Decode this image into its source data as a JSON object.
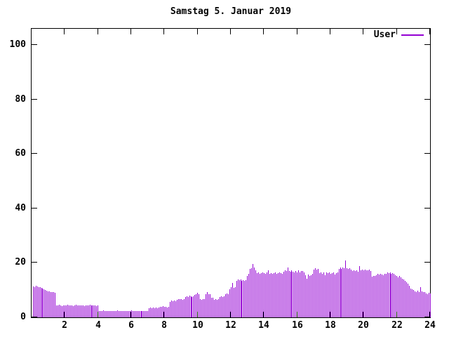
{
  "title": "Samstag 5. Januar 2019",
  "legend": {
    "label": "User"
  },
  "colors": {
    "series": "#9400D3",
    "axis": "#000000",
    "background": "#ffffff"
  },
  "axes": {
    "y_ticks": [
      0,
      20,
      40,
      60,
      80,
      100
    ],
    "x_ticks": [
      2,
      4,
      6,
      8,
      10,
      12,
      14,
      16,
      18,
      20,
      22,
      24
    ]
  },
  "chart_data": {
    "type": "bar",
    "title": "Samstag 5. Januar 2019",
    "series_name": "User",
    "xlabel": "",
    "ylabel": "",
    "xlim": [
      0,
      24
    ],
    "ylim": [
      0,
      106
    ],
    "grid": false,
    "legend_position": "top-right",
    "x_unit": "hour of day",
    "interval_minutes": 5,
    "values": [
      11.4,
      11.2,
      11.5,
      11.3,
      11.0,
      11.2,
      10.9,
      10.6,
      10.2,
      10.0,
      9.8,
      9.6,
      9.5,
      9.3,
      9.4,
      9.2,
      9.0,
      4.5,
      4.3,
      4.6,
      4.4,
      4.2,
      4.5,
      4.4,
      4.3,
      4.6,
      4.4,
      4.3,
      4.5,
      4.2,
      4.4,
      4.6,
      4.3,
      4.4,
      4.5,
      4.3,
      4.4,
      4.2,
      4.5,
      4.4,
      4.3,
      4.6,
      4.4,
      4.5,
      4.3,
      4.4,
      4.2,
      4.4,
      2.4,
      2.2,
      2.3,
      2.5,
      2.2,
      2.3,
      2.4,
      2.2,
      2.3,
      2.2,
      2.4,
      2.3,
      2.2,
      2.5,
      2.3,
      2.2,
      2.4,
      2.3,
      2.2,
      2.3,
      2.4,
      2.2,
      2.3,
      2.5,
      2.2,
      2.3,
      2.4,
      2.3,
      2.2,
      2.4,
      2.3,
      2.2,
      2.3,
      2.4,
      2.2,
      2.3,
      3.3,
      3.5,
      3.4,
      3.6,
      3.4,
      3.5,
      3.3,
      3.7,
      3.9,
      3.8,
      4.0,
      3.8,
      3.9,
      3.7,
      3.8,
      5.8,
      6.1,
      6.0,
      6.2,
      5.9,
      6.5,
      6.7,
      6.6,
      6.8,
      6.5,
      6.7,
      7.5,
      7.8,
      7.6,
      7.9,
      7.7,
      7.4,
      7.8,
      8.3,
      8.6,
      9.0,
      8.4,
      6.8,
      6.5,
      6.7,
      6.6,
      8.5,
      9.3,
      8.6,
      8.4,
      7.3,
      7.1,
      6.5,
      6.7,
      6.4,
      6.6,
      7.4,
      7.7,
      7.5,
      7.8,
      8.4,
      8.7,
      8.6,
      10.4,
      11.2,
      12.6,
      10.8,
      11.0,
      13.4,
      14.0,
      13.7,
      13.9,
      13.3,
      13.6,
      13.4,
      13.7,
      15.2,
      16.0,
      17.8,
      18.1,
      19.6,
      18.3,
      17.2,
      16.2,
      16.4,
      16.1,
      16.3,
      16.5,
      16.2,
      16.0,
      16.4,
      17.3,
      16.1,
      16.3,
      16.0,
      16.2,
      16.4,
      16.1,
      16.3,
      16.5,
      16.2,
      16.0,
      16.8,
      17.2,
      16.9,
      18.3,
      17.0,
      16.7,
      17.4,
      16.8,
      16.5,
      17.0,
      16.6,
      17.2,
      16.4,
      16.9,
      17.1,
      16.6,
      15.5,
      14.3,
      15.8,
      15.2,
      15.6,
      15.9,
      17.5,
      18.0,
      17.6,
      17.8,
      16.3,
      16.6,
      16.1,
      16.5,
      15.6,
      16.4,
      16.2,
      16.6,
      16.0,
      16.3,
      16.5,
      15.8,
      16.2,
      16.4,
      17.9,
      18.2,
      17.8,
      18.3,
      18.0,
      20.9,
      18.1,
      17.8,
      18.0,
      17.6,
      17.0,
      17.4,
      16.9,
      17.2,
      16.8,
      18.9,
      17.3,
      17.5,
      17.2,
      17.6,
      17.4,
      17.3,
      17.5,
      17.1,
      15.0,
      15.3,
      15.1,
      15.6,
      15.9,
      15.7,
      16.0,
      15.8,
      15.6,
      15.9,
      16.1,
      16.4,
      16.2,
      16.5,
      16.0,
      16.3,
      16.1,
      15.4,
      15.1,
      14.8,
      15.2,
      14.6,
      14.3,
      14.0,
      13.5,
      12.9,
      12.3,
      11.7,
      10.6,
      10.3,
      10.0,
      9.6,
      9.3,
      9.8,
      9.4,
      11.0,
      9.5,
      9.2,
      9.4,
      8.8,
      8.6,
      8.9,
      8.7
    ]
  }
}
